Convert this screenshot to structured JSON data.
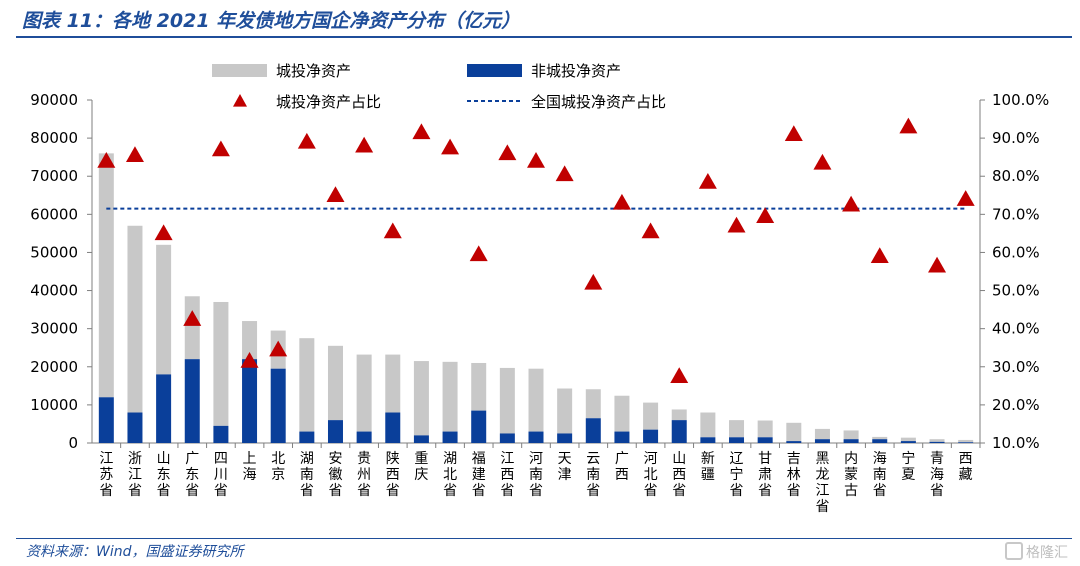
{
  "header": {
    "title": "图表 11：各地 2021 年发债地方国企净资产分布（亿元）"
  },
  "footer": {
    "source": "资料来源：Wind，国盛证券研究所",
    "watermark": "格隆汇"
  },
  "colors": {
    "city_investment": "#c8c8c8",
    "non_city_investment": "#0a3f9a",
    "share_marker": "#c00000",
    "national_line": "#0a3f9a",
    "title": "#1f4e9a"
  },
  "chart_data": {
    "type": "bar",
    "stacked": true,
    "title": "各地 2021 年发债地方国企净资产分布（亿元）",
    "categories": [
      "江苏省",
      "浙江省",
      "山东省",
      "广东省",
      "四川省",
      "上海",
      "北京",
      "湖南省",
      "安徽省",
      "贵州省",
      "陕西省",
      "重庆",
      "湖北省",
      "福建省",
      "江西省",
      "河南省",
      "天津",
      "云南省",
      "广西",
      "河北省",
      "山西省",
      "新疆",
      "辽宁省",
      "甘肃省",
      "吉林省",
      "黑龙江省",
      "内蒙古",
      "海南省",
      "宁夏",
      "青海省",
      "西藏"
    ],
    "series": [
      {
        "name": "非城投净资产",
        "type": "bar",
        "values": [
          12000,
          8000,
          18000,
          22000,
          4500,
          22000,
          19500,
          3000,
          6000,
          3000,
          8000,
          2000,
          3000,
          8500,
          2500,
          3000,
          2500,
          6500,
          3000,
          3500,
          6000,
          1500,
          1500,
          1500,
          500,
          1000,
          1000,
          1000,
          500,
          300,
          200
        ]
      },
      {
        "name": "城投净资产",
        "type": "bar",
        "values": [
          64000,
          49000,
          34000,
          16500,
          32500,
          10000,
          10000,
          24500,
          19500,
          20200,
          15200,
          19500,
          18300,
          12500,
          17200,
          16500,
          11800,
          7600,
          9400,
          7100,
          2800,
          6500,
          4500,
          4400,
          4800,
          2700,
          2300,
          600,
          900,
          700,
          600
        ]
      },
      {
        "name": "城投净资产占比",
        "type": "scatter",
        "axis": "right",
        "values": [
          84.0,
          85.5,
          65.0,
          42.5,
          87.0,
          31.5,
          34.5,
          89.0,
          75.0,
          88.0,
          65.5,
          91.5,
          87.5,
          59.5,
          86.0,
          84.0,
          80.5,
          52.0,
          73.0,
          65.5,
          27.5,
          78.5,
          67.0,
          69.5,
          91.0,
          83.5,
          72.5,
          59.0,
          93.0,
          56.5,
          74.0
        ]
      },
      {
        "name": "全国城投净资产占比",
        "type": "line",
        "axis": "right",
        "value": 71.5
      }
    ],
    "yticks_left": [
      "90000",
      "80000",
      "70000",
      "60000",
      "50000",
      "40000",
      "30000",
      "20000",
      "10000",
      "0"
    ],
    "yticks_right": [
      "100.0%",
      "90.0%",
      "80.0%",
      "70.0%",
      "60.0%",
      "50.0%",
      "40.0%",
      "30.0%",
      "20.0%",
      "10.0%"
    ],
    "ylim_left": [
      0,
      90000
    ],
    "ylim_right": [
      10,
      100
    ],
    "legend": [
      "城投净资产",
      "非城投净资产",
      "城投净资产占比",
      "全国城投净资产占比"
    ],
    "legend_position": "top",
    "grid": false
  }
}
